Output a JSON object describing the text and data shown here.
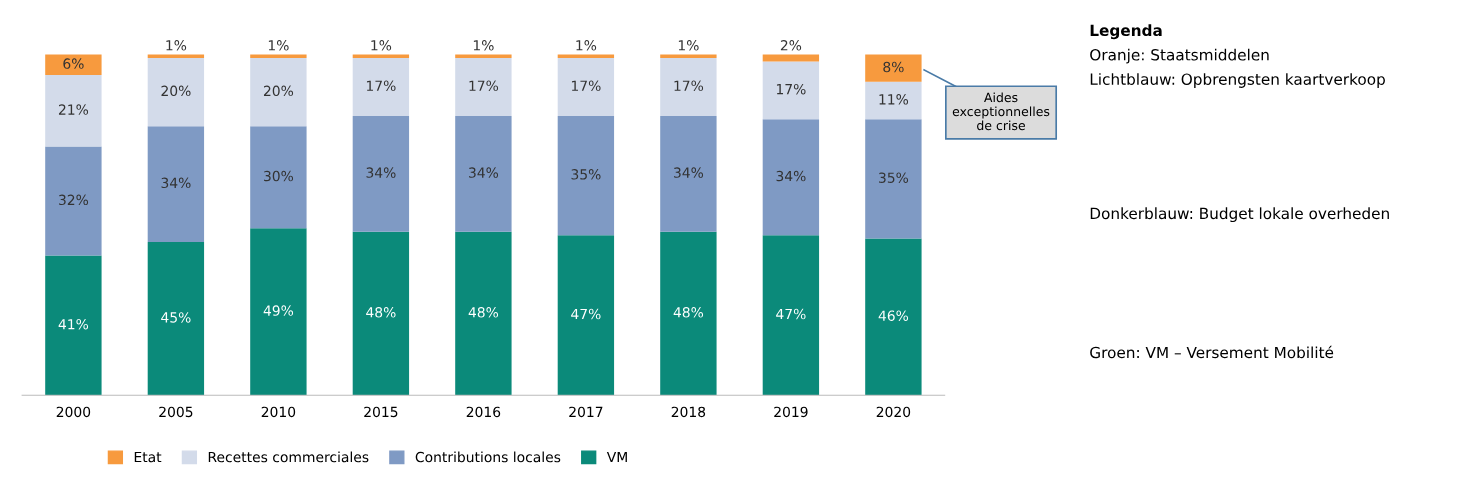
{
  "chart_data": {
    "type": "bar",
    "stacked": true,
    "legend": "bottom",
    "categories": [
      "2000",
      "2005",
      "2010",
      "2015",
      "2016",
      "2017",
      "2018",
      "2019",
      "2020"
    ],
    "series": [
      {
        "name": "VM",
        "color": "#0b8a7a",
        "values": [
          41,
          45,
          49,
          48,
          48,
          47,
          48,
          47,
          46
        ],
        "value_labels": [
          "41%",
          "45%",
          "49%",
          "48%",
          "48%",
          "47%",
          "48%",
          "47%",
          "46%"
        ]
      },
      {
        "name": "Contributions locales",
        "color": "#7f9ac4",
        "values": [
          32,
          34,
          30,
          34,
          34,
          35,
          34,
          34,
          35
        ],
        "value_labels": [
          "32%",
          "34%",
          "30%",
          "34%",
          "34%",
          "35%",
          "34%",
          "34%",
          "35%"
        ]
      },
      {
        "name": "Recettes commerciales",
        "color": "#d3dbea",
        "values": [
          21,
          20,
          20,
          17,
          17,
          17,
          17,
          17,
          11
        ],
        "value_labels": [
          "21%",
          "20%",
          "20%",
          "17%",
          "17%",
          "17%",
          "17%",
          "17%",
          "11%"
        ]
      },
      {
        "name": "Etat",
        "color": "#f79a3e",
        "values": [
          6,
          1,
          1,
          1,
          1,
          1,
          1,
          2,
          8
        ],
        "value_labels": [
          "6%",
          "1%",
          "1%",
          "1%",
          "1%",
          "1%",
          "1%",
          "2%",
          "8%"
        ]
      }
    ],
    "annotations": [
      "Aides\nexceptionnelles\nde crise",
      "Legenda",
      "Oranje: Staatsmiddelen",
      "Lichtblauw: Opbrengsten kaartverkoop",
      "Donkerblauw: Budget lokale overheden",
      "Groen: VM – Versement Mobilité"
    ]
  }
}
